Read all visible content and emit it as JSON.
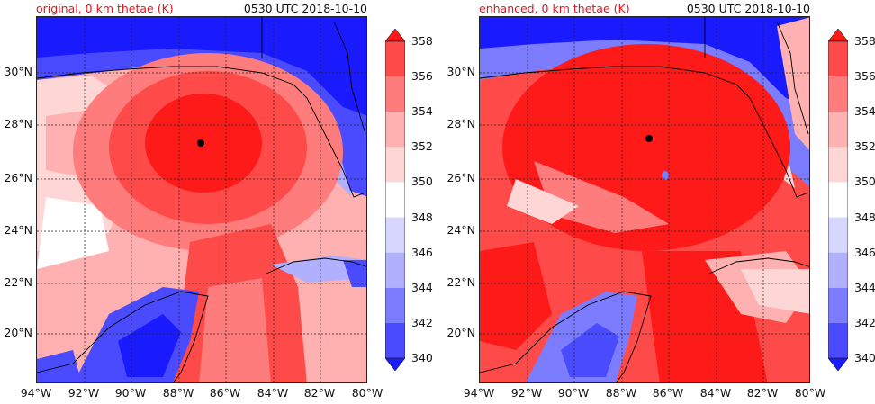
{
  "panels": [
    {
      "id": "left",
      "label": "original, 0 km thetae (K)",
      "time": "0530 UTC 2018-10-10"
    },
    {
      "id": "right",
      "label": "enhanced, 0 km thetae (K)",
      "time": "0530 UTC 2018-10-10"
    }
  ],
  "map": {
    "lon_ticks": [
      "94°W",
      "92°W",
      "90°W",
      "88°W",
      "86°W",
      "84°W",
      "82°W",
      "80°W"
    ],
    "lat_ticks": [
      "30°N",
      "28°N",
      "26°N",
      "24°N",
      "22°N",
      "20°N"
    ]
  },
  "colorbar": {
    "ticks": [
      "358",
      "356",
      "354",
      "352",
      "350",
      "348",
      "346",
      "344",
      "342",
      "340"
    ],
    "colors": [
      "#ff1a1a",
      "#ff4a4a",
      "#ff7c7c",
      "#ffb0b0",
      "#ffd6d6",
      "#ffffff",
      "#d6d6ff",
      "#b0b0ff",
      "#7c7cff",
      "#4a4aff",
      "#1a1aff"
    ],
    "min": 340,
    "max": 358,
    "step": 2
  },
  "colors": {
    "title_label": "#e8141b",
    "high": "#ff1a1a",
    "low": "#1a1aff"
  }
}
